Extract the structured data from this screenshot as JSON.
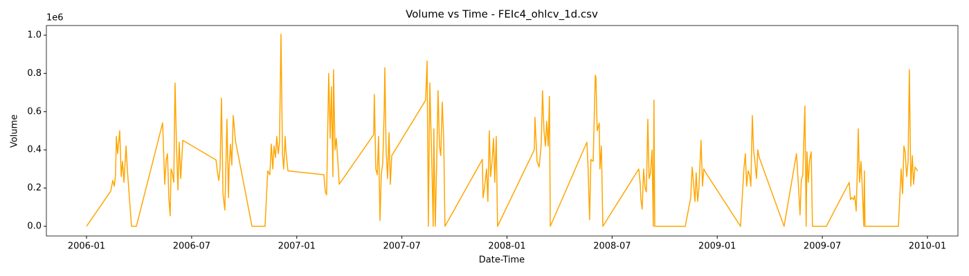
{
  "chart_data": {
    "type": "line",
    "title": "Volume vs Time - FEIc4_ohlcv_1d.csv",
    "x_label": "Date-Time",
    "y_label": "Volume",
    "y_offset_label": "1e6",
    "color": "#ffa500",
    "xlim": [
      2005.809,
      2010.145
    ],
    "ylim": [
      -50500,
      1050500
    ],
    "xticks": [
      {
        "value": 2006.0,
        "label": "2006-01"
      },
      {
        "value": 2006.5,
        "label": "2006-07"
      },
      {
        "value": 2007.0,
        "label": "2007-01"
      },
      {
        "value": 2007.5,
        "label": "2007-07"
      },
      {
        "value": 2008.0,
        "label": "2008-01"
      },
      {
        "value": 2008.5,
        "label": "2008-07"
      },
      {
        "value": 2009.0,
        "label": "2009-01"
      },
      {
        "value": 2009.5,
        "label": "2009-07"
      },
      {
        "value": 2010.0,
        "label": "2010-01"
      }
    ],
    "yticks": [
      {
        "value": 0,
        "label": "0.0"
      },
      {
        "value": 200000,
        "label": "0.2"
      },
      {
        "value": 400000,
        "label": "0.4"
      },
      {
        "value": 600000,
        "label": "0.6"
      },
      {
        "value": 800000,
        "label": "0.8"
      },
      {
        "value": 1000000,
        "label": "1.0"
      }
    ],
    "x": [
      2006.0,
      2006.115,
      2006.125,
      2006.132,
      2006.138,
      2006.142,
      2006.148,
      2006.158,
      2006.165,
      2006.171,
      2006.178,
      2006.188,
      2006.194,
      2006.214,
      2006.237,
      2006.362,
      2006.372,
      2006.379,
      2006.385,
      2006.392,
      2006.398,
      2006.402,
      2006.408,
      2006.415,
      2006.421,
      2006.428,
      2006.435,
      2006.441,
      2006.448,
      2006.458,
      2006.616,
      2006.622,
      2006.629,
      2006.635,
      2006.642,
      2006.649,
      2006.658,
      2006.668,
      2006.675,
      2006.678,
      2006.685,
      2006.691,
      2006.698,
      2006.708,
      2006.787,
      2006.849,
      2006.862,
      2006.872,
      2006.879,
      2006.886,
      2006.892,
      2006.899,
      2006.905,
      2006.912,
      2006.918,
      2006.925,
      2006.932,
      2006.938,
      2006.945,
      2006.948,
      2006.958,
      2007.129,
      2007.136,
      2007.142,
      2007.152,
      2007.159,
      2007.165,
      2007.172,
      2007.175,
      2007.182,
      2007.188,
      2007.195,
      2007.202,
      2007.366,
      2007.369,
      2007.376,
      2007.383,
      2007.389,
      2007.396,
      2007.402,
      2007.409,
      2007.416,
      2007.419,
      2007.425,
      2007.432,
      2007.439,
      2007.445,
      2007.452,
      2007.613,
      2007.62,
      2007.626,
      2007.633,
      2007.643,
      2007.649,
      2007.652,
      2007.659,
      2007.666,
      2007.672,
      2007.679,
      2007.685,
      2007.692,
      2007.699,
      2007.705,
      2007.883,
      2007.886,
      2007.893,
      2007.903,
      2007.909,
      2007.916,
      2007.922,
      2007.929,
      2007.936,
      2007.942,
      2007.949,
      2007.955,
      2008.13,
      2008.133,
      2008.143,
      2008.153,
      2008.163,
      2008.169,
      2008.176,
      2008.183,
      2008.189,
      2008.196,
      2008.202,
      2008.206,
      2008.38,
      2008.386,
      2008.393,
      2008.399,
      2008.41,
      2008.42,
      2008.423,
      2008.429,
      2008.439,
      2008.442,
      2008.449,
      2008.456,
      2008.627,
      2008.634,
      2008.637,
      2008.643,
      2008.65,
      2008.657,
      2008.663,
      2008.67,
      2008.676,
      2008.683,
      2008.69,
      2008.696,
      2008.699,
      2008.703,
      2008.848,
      2008.874,
      2008.881,
      2008.887,
      2008.894,
      2008.9,
      2008.907,
      2008.913,
      2008.923,
      2008.93,
      2008.936,
      2008.946,
      2009.111,
      2009.127,
      2009.134,
      2009.14,
      2009.147,
      2009.154,
      2009.16,
      2009.167,
      2009.173,
      2009.18,
      2009.187,
      2009.193,
      2009.2,
      2009.318,
      2009.377,
      2009.387,
      2009.394,
      2009.4,
      2009.407,
      2009.417,
      2009.423,
      2009.427,
      2009.433,
      2009.44,
      2009.447,
      2009.453,
      2009.519,
      2009.628,
      2009.634,
      2009.641,
      2009.648,
      2009.654,
      2009.661,
      2009.667,
      2009.671,
      2009.677,
      2009.684,
      2009.69,
      2009.697,
      2009.7,
      2009.703,
      2009.862,
      2009.875,
      2009.882,
      2009.888,
      2009.894,
      2009.901,
      2009.908,
      2009.914,
      2009.921,
      2009.928,
      2009.934,
      2009.941,
      2009.954
    ],
    "values": [
      0,
      184000,
      240000,
      210000,
      270000,
      470000,
      380000,
      500000,
      260000,
      340000,
      230000,
      420000,
      300000,
      0,
      0,
      541000,
      220000,
      350000,
      380000,
      140000,
      55000,
      300000,
      280000,
      230000,
      750000,
      420000,
      190000,
      440000,
      250000,
      450000,
      347000,
      290000,
      240000,
      300000,
      670000,
      170000,
      85000,
      560000,
      150000,
      300000,
      430000,
      320000,
      580000,
      450000,
      0,
      0,
      290000,
      270000,
      430000,
      300000,
      420000,
      360000,
      470000,
      380000,
      440000,
      1005000,
      380000,
      300000,
      470000,
      400000,
      290000,
      270000,
      180000,
      165000,
      800000,
      460000,
      730000,
      260000,
      820000,
      400000,
      460000,
      350000,
      220000,
      480000,
      690000,
      300000,
      270000,
      470000,
      30000,
      270000,
      330000,
      610000,
      830000,
      400000,
      250000,
      490000,
      220000,
      370000,
      660000,
      865000,
      0,
      750000,
      300000,
      0,
      510000,
      0,
      350000,
      710000,
      420000,
      370000,
      650000,
      460000,
      0,
      350000,
      150000,
      200000,
      300000,
      130000,
      500000,
      260000,
      340000,
      460000,
      230000,
      470000,
      0,
      400000,
      570000,
      340000,
      310000,
      430000,
      710000,
      500000,
      420000,
      550000,
      420000,
      680000,
      0,
      440000,
      300000,
      35000,
      350000,
      340000,
      790000,
      780000,
      500000,
      540000,
      300000,
      420000,
      0,
      300000,
      220000,
      140000,
      90000,
      300000,
      200000,
      180000,
      560000,
      250000,
      280000,
      400000,
      0,
      660000,
      0,
      0,
      150000,
      310000,
      230000,
      130000,
      280000,
      130000,
      200000,
      450000,
      210000,
      300000,
      280000,
      0,
      300000,
      380000,
      210000,
      290000,
      270000,
      210000,
      580000,
      400000,
      330000,
      250000,
      400000,
      360000,
      0,
      380000,
      200000,
      60000,
      240000,
      270000,
      630000,
      0,
      390000,
      230000,
      350000,
      390000,
      0,
      0,
      230000,
      140000,
      150000,
      140000,
      160000,
      80000,
      310000,
      510000,
      230000,
      340000,
      200000,
      0,
      290000,
      0,
      0,
      300000,
      170000,
      420000,
      390000,
      260000,
      340000,
      820000,
      210000,
      370000,
      220000,
      310000,
      290000
    ]
  }
}
